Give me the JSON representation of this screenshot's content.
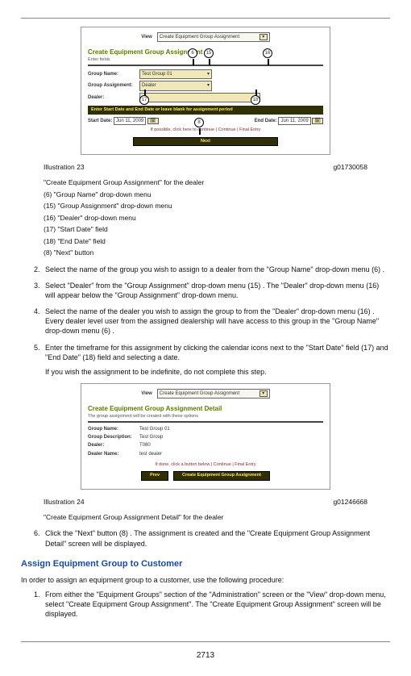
{
  "hrTop": true,
  "shot1": {
    "view_label": "View",
    "view_select": "Create Equipment Group Assignment",
    "title": "Create Equipment Group Assignment",
    "subtitle": "Enter fields",
    "field_group_name_lbl": "Group Name:",
    "field_group_name_val": "Test Group 01",
    "field_group_assign_lbl": "Group Assignment:",
    "field_group_assign_val": "Dealer",
    "field_dealer_lbl": "Dealer:",
    "field_dealer_val": "",
    "bar_text": "Enter Start Date and End Date or leave blank for assignment period",
    "start_lbl": "Start Date:",
    "start_val": "Jun 11, 2009",
    "end_lbl": "End Date:",
    "end_val": "Jun 11, 2009",
    "link_text": "If possible, click here to continue |  Continue  |  Final Entry",
    "btn_next": "Next",
    "c6": "6",
    "c15": "15",
    "c16": "16",
    "c17": "17",
    "c18": "18",
    "c8": "8"
  },
  "cap1_left": "Illustration 23",
  "cap1_right": "g01730058",
  "cap1_lines": [
    "\"Create Equipment Group Assignment\" for the dealer",
    "(6) \"Group Name\" drop-down menu",
    "(15) \"Group Assignment\" drop-down menu",
    "(16) \"Dealer\" drop-down menu",
    "(17) \"Start Date\" field",
    "(18) \"End Date\" field",
    "(8) \"Next\" button"
  ],
  "steps_a": [
    "Select the name of the group you wish to assign to a dealer from the \"Group Name\" drop-down menu (6) .",
    "Select \"Dealer\" from the \"Group Assignment\" drop-down menu (15) . The \"Dealer\" drop-down menu (16) will appear below the \"Group Assignment\" drop-down menu.",
    "Select the name of the dealer you wish to assign the group to from the \"Dealer\" drop-down menu (16) . Every dealer level user from the assigned dealership will have access to this group in the \"Group Name\" drop-down menu (6) .",
    "Enter the timeframe for this assignment by clicking the calendar icons next to the \"Start Date\" field (17) and \"End Date\" (18) field and selecting a date."
  ],
  "step5_extra": "If you wish the assignment to be indefinite, do not complete this step.",
  "shot2": {
    "view_label": "View",
    "view_select": "Create Equipment Group Assignment",
    "title": "Create Equipment Group Assignment Detail",
    "subtitle": "The group assignment will be created with these options",
    "rows": [
      [
        "Group Name:",
        "Test Group 01"
      ],
      [
        "Group Description:",
        "Test Group"
      ],
      [
        "Dealer:",
        "T080"
      ],
      [
        "Dealer Name:",
        "test dealer"
      ]
    ],
    "link_text": "If done, click a button below |  Continue  |  Final Entry",
    "btn_prev": "Prev",
    "btn_next": "Create Equipment Group Assignment"
  },
  "cap2_left": "Illustration 24",
  "cap2_right": "g01246668",
  "cap2_line": "\"Create Equipment Group Assignment Detail\" for the dealer",
  "step6": "Click the \"Next\" button (8) . The assignment is created and the \"Create Equipment Group Assignment Detail\" screen will be displayed.",
  "sect_heading": "Assign Equipment Group to Customer",
  "sect_intro": "In order to assign an equipment group to a customer, use the following procedure:",
  "sect_step1": "From either the \"Equipment Groups\" section of the \"Administration\" screen or the \"View\" drop-down menu, select \"Create Equipment Group Assignment\". The \"Create Equipment Group Assignment\" screen will be displayed.",
  "page_number": "2713"
}
